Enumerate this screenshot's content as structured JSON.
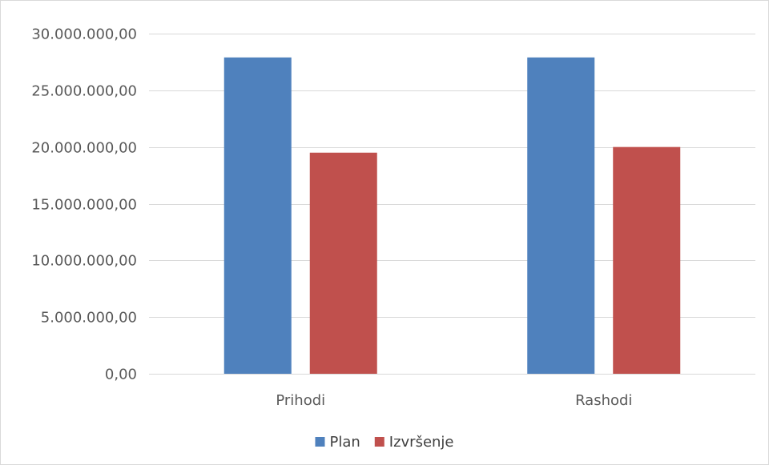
{
  "chart_data": {
    "type": "bar",
    "categories": [
      "Prihodi",
      "Rashodi"
    ],
    "series": [
      {
        "name": "Plan",
        "values": [
          27900000,
          27900000
        ],
        "color": "#4f81bd"
      },
      {
        "name": "Izvršenje",
        "values": [
          19500000,
          20000000
        ],
        "color": "#c0504d"
      }
    ],
    "ylim": [
      0,
      30000000
    ],
    "y_ticks": [
      0,
      5000000,
      10000000,
      15000000,
      20000000,
      25000000,
      30000000
    ],
    "y_tick_labels": [
      "0,00",
      "5.000.000,00",
      "10.000.000,00",
      "15.000.000,00",
      "20.000.000,00",
      "25.000.000,00",
      "30.000.000,00"
    ],
    "grid": true,
    "legend_position": "bottom",
    "title": "",
    "xlabel": "",
    "ylabel": ""
  }
}
